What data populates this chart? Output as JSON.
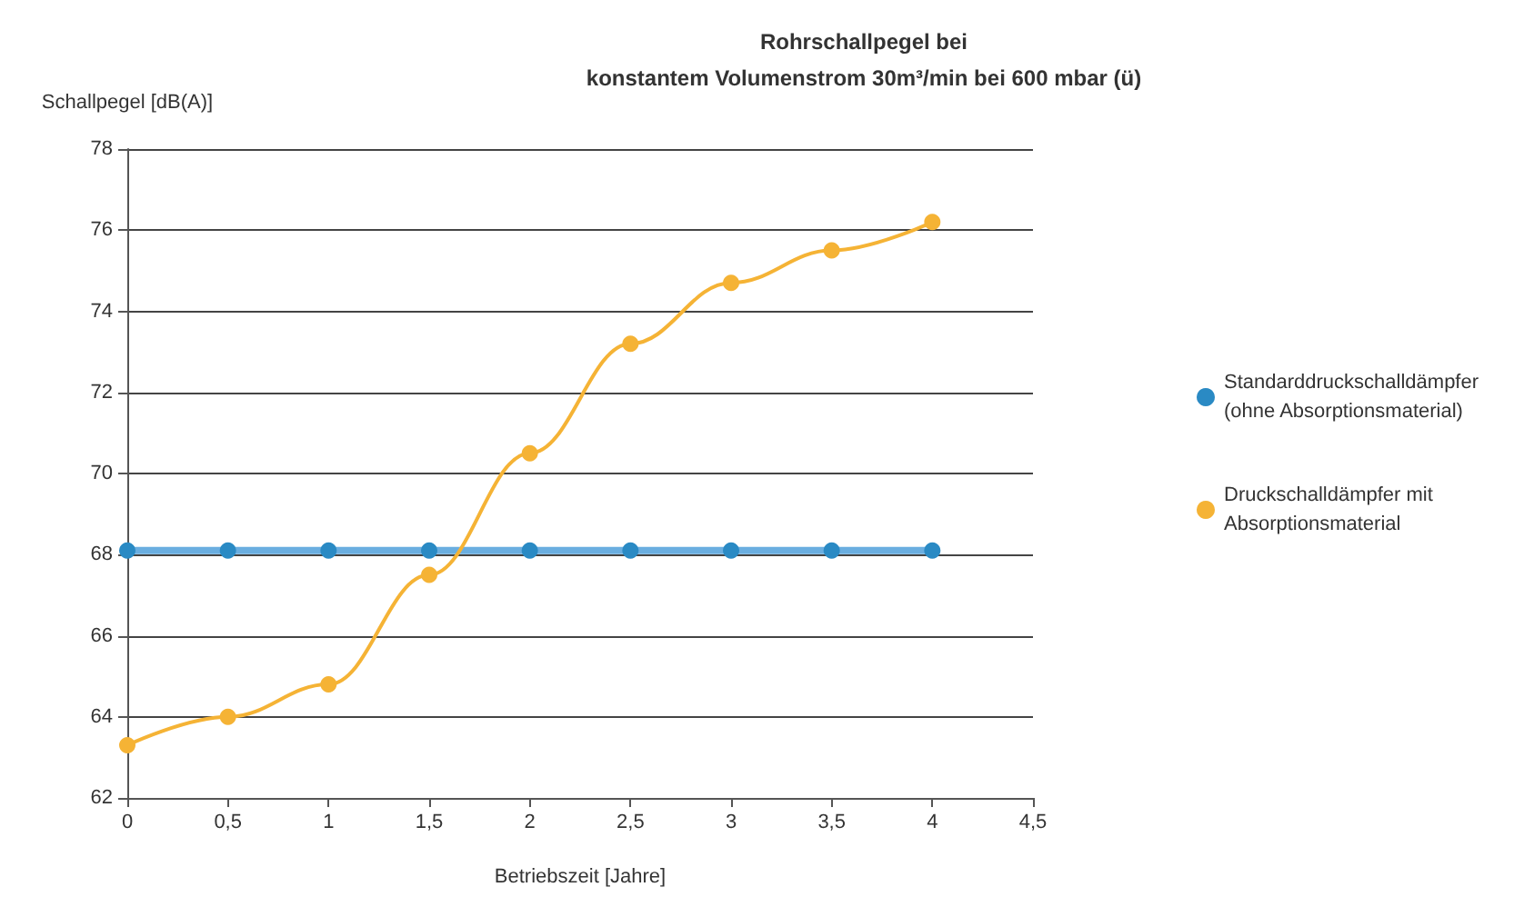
{
  "chart_data": {
    "type": "line",
    "title": "Rohrschallpegel bei\nkonstantem Volumenstrom 30m³/min bei 600 mbar (ü)",
    "xlabel": "Betriebszeit [Jahre]",
    "ylabel": "Schallpegel [dB(A)]",
    "x": [
      0,
      0.5,
      1,
      1.5,
      2,
      2.5,
      3,
      3.5,
      4
    ],
    "series": [
      {
        "name": "Standarddruckschalldämpfer (ohne Absorptionsmaterial)",
        "color": "#2a8ac4",
        "values": [
          68.1,
          68.1,
          68.1,
          68.1,
          68.1,
          68.1,
          68.1,
          68.1,
          68.1
        ]
      },
      {
        "name": "Druckschalldämpfer mit Absorptionsmaterial",
        "color": "#f5b335",
        "values": [
          63.3,
          64.0,
          64.8,
          67.5,
          70.5,
          73.2,
          74.7,
          75.5,
          76.2
        ]
      }
    ],
    "xlim": [
      0,
      4.5
    ],
    "xticks": [
      0,
      {
        "value": 0.5,
        "label": "0,5"
      },
      1,
      {
        "value": 1.5,
        "label": "1,5"
      },
      2,
      {
        "value": 2.5,
        "label": "2,5"
      },
      3,
      {
        "value": 3.5,
        "label": "3,5"
      },
      4,
      {
        "value": 4.5,
        "label": "4,5"
      }
    ],
    "ylim": [
      62,
      78
    ],
    "yticks": [
      62,
      64,
      66,
      68,
      70,
      72,
      74,
      76,
      78
    ],
    "grid": "y",
    "legend": "right",
    "marker": "circle"
  }
}
